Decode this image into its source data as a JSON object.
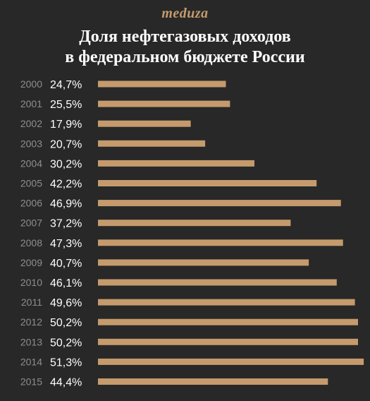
{
  "header": {
    "brand": "meduza",
    "title_line1": "Доля нефтегазовых доходов",
    "title_line2": "в федеральном бюджете России"
  },
  "colors": {
    "background": "#282828",
    "bar": "#c59b6d",
    "brand": "#c59b6d",
    "year_label": "#8e8e8e",
    "value_label": "#ffffff"
  },
  "chart_data": {
    "type": "bar",
    "orientation": "horizontal",
    "categories": [
      "2000",
      "2001",
      "2002",
      "2003",
      "2004",
      "2005",
      "2006",
      "2007",
      "2008",
      "2009",
      "2010",
      "2011",
      "2012",
      "2013",
      "2014",
      "2015"
    ],
    "values": [
      24.7,
      25.5,
      17.9,
      20.7,
      30.2,
      42.2,
      46.9,
      37.2,
      47.3,
      40.7,
      46.1,
      49.6,
      50.2,
      50.2,
      51.3,
      44.4
    ],
    "value_labels": [
      "24,7%",
      "25,5%",
      "17,9%",
      "20,7%",
      "30,2%",
      "42,2%",
      "46,9%",
      "37,2%",
      "47,3%",
      "40,7%",
      "46,1%",
      "49,6%",
      "50,2%",
      "50,2%",
      "51,3%",
      "44,4%"
    ],
    "title": "Доля нефтегазовых доходов в федеральном бюджете России",
    "grid": false,
    "legend": false
  }
}
